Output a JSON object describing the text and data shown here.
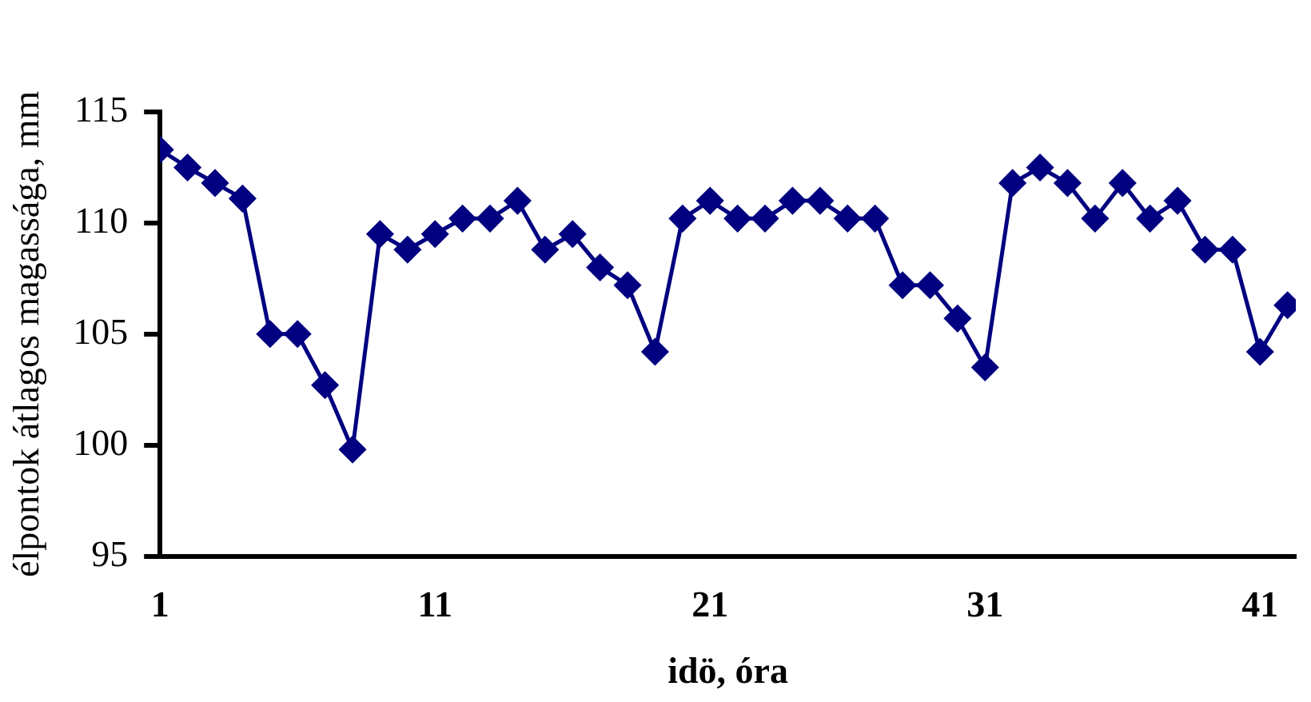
{
  "chart_data": {
    "type": "line",
    "xlabel": "idö, óra",
    "ylabel": "élpontok átlagos magassága, mm",
    "x": [
      1,
      2,
      3,
      4,
      5,
      6,
      7,
      8,
      9,
      10,
      11,
      12,
      13,
      14,
      15,
      16,
      17,
      18,
      19,
      20,
      21,
      22,
      23,
      24,
      25,
      26,
      27,
      28,
      29,
      30,
      31,
      32,
      33,
      34,
      35,
      36,
      37,
      38,
      39,
      40,
      41,
      42
    ],
    "series": [
      {
        "color": "#000080",
        "values": [
          113.3,
          112.5,
          111.8,
          111.1,
          105.0,
          105.0,
          102.7,
          99.8,
          109.5,
          108.8,
          109.5,
          110.2,
          110.2,
          111.0,
          108.8,
          109.5,
          108.0,
          107.2,
          104.2,
          110.2,
          111.0,
          110.2,
          110.2,
          111.0,
          111.0,
          110.2,
          110.2,
          107.2,
          107.2,
          105.7,
          103.5,
          111.8,
          112.5,
          111.8,
          110.2,
          111.8,
          110.2,
          111.0,
          108.8,
          108.8,
          104.2,
          106.3
        ]
      }
    ],
    "xlim": [
      1,
      42.3
    ],
    "xticks": [
      1,
      11,
      21,
      31,
      41
    ],
    "ylim": [
      95,
      115
    ],
    "yticks": [
      95,
      100,
      105,
      110,
      115
    ],
    "grid": false,
    "legend": false,
    "marker": "diamond",
    "line_style": "solid"
  }
}
